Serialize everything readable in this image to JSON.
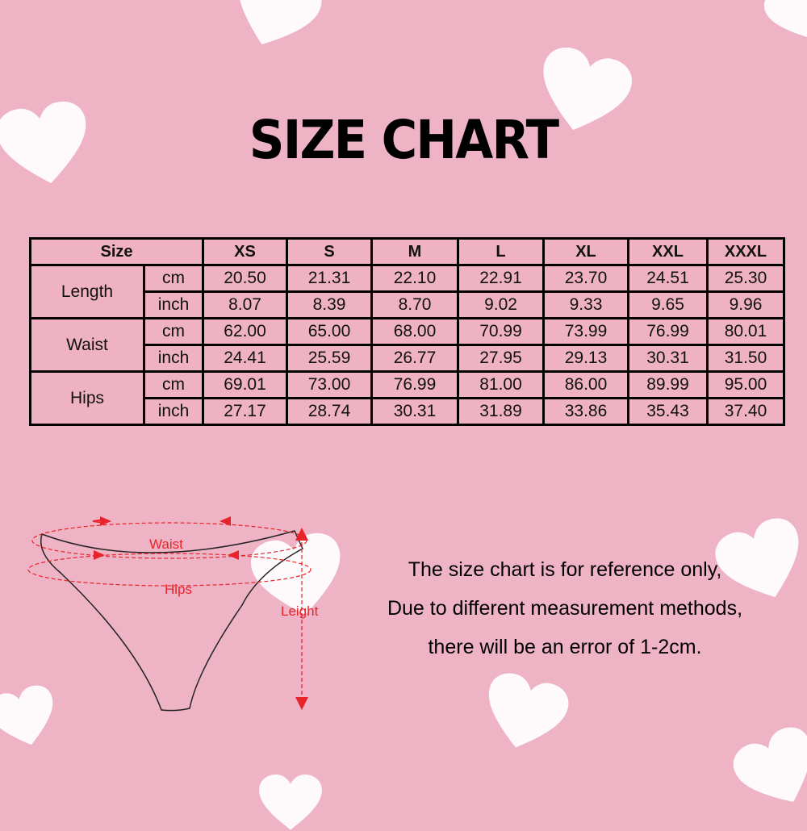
{
  "title": "SIZE CHART",
  "table": {
    "size_label": "Size",
    "sizes": [
      "XS",
      "S",
      "M",
      "L",
      "XL",
      "XXL",
      "XXXL"
    ],
    "groups": [
      {
        "label": "Length",
        "rows": [
          {
            "unit": "cm",
            "values": [
              "20.50",
              "21.31",
              "22.10",
              "22.91",
              "23.70",
              "24.51",
              "25.30"
            ]
          },
          {
            "unit": "inch",
            "values": [
              "8.07",
              "8.39",
              "8.70",
              "9.02",
              "9.33",
              "9.65",
              "9.96"
            ]
          }
        ]
      },
      {
        "label": "Waist",
        "rows": [
          {
            "unit": "cm",
            "values": [
              "62.00",
              "65.00",
              "68.00",
              "70.99",
              "73.99",
              "76.99",
              "80.01"
            ]
          },
          {
            "unit": "inch",
            "values": [
              "24.41",
              "25.59",
              "26.77",
              "27.95",
              "29.13",
              "30.31",
              "31.50"
            ]
          }
        ]
      },
      {
        "label": "Hips",
        "rows": [
          {
            "unit": "cm",
            "values": [
              "69.01",
              "73.00",
              "76.99",
              "81.00",
              "86.00",
              "89.99",
              "95.00"
            ]
          },
          {
            "unit": "inch",
            "values": [
              "27.17",
              "28.74",
              "30.31",
              "31.89",
              "33.86",
              "35.43",
              "37.40"
            ]
          }
        ]
      }
    ]
  },
  "diagram": {
    "waist": "Waist",
    "hips": "Hips",
    "length": "Leight",
    "accent": "#e8232a"
  },
  "note": [
    "The size chart is for reference only,",
    "Due to different measurement methods,",
    "there will be an error of 1-2cm."
  ],
  "colors": {
    "background": "#eeb3c4",
    "heart": "#ffffff"
  }
}
